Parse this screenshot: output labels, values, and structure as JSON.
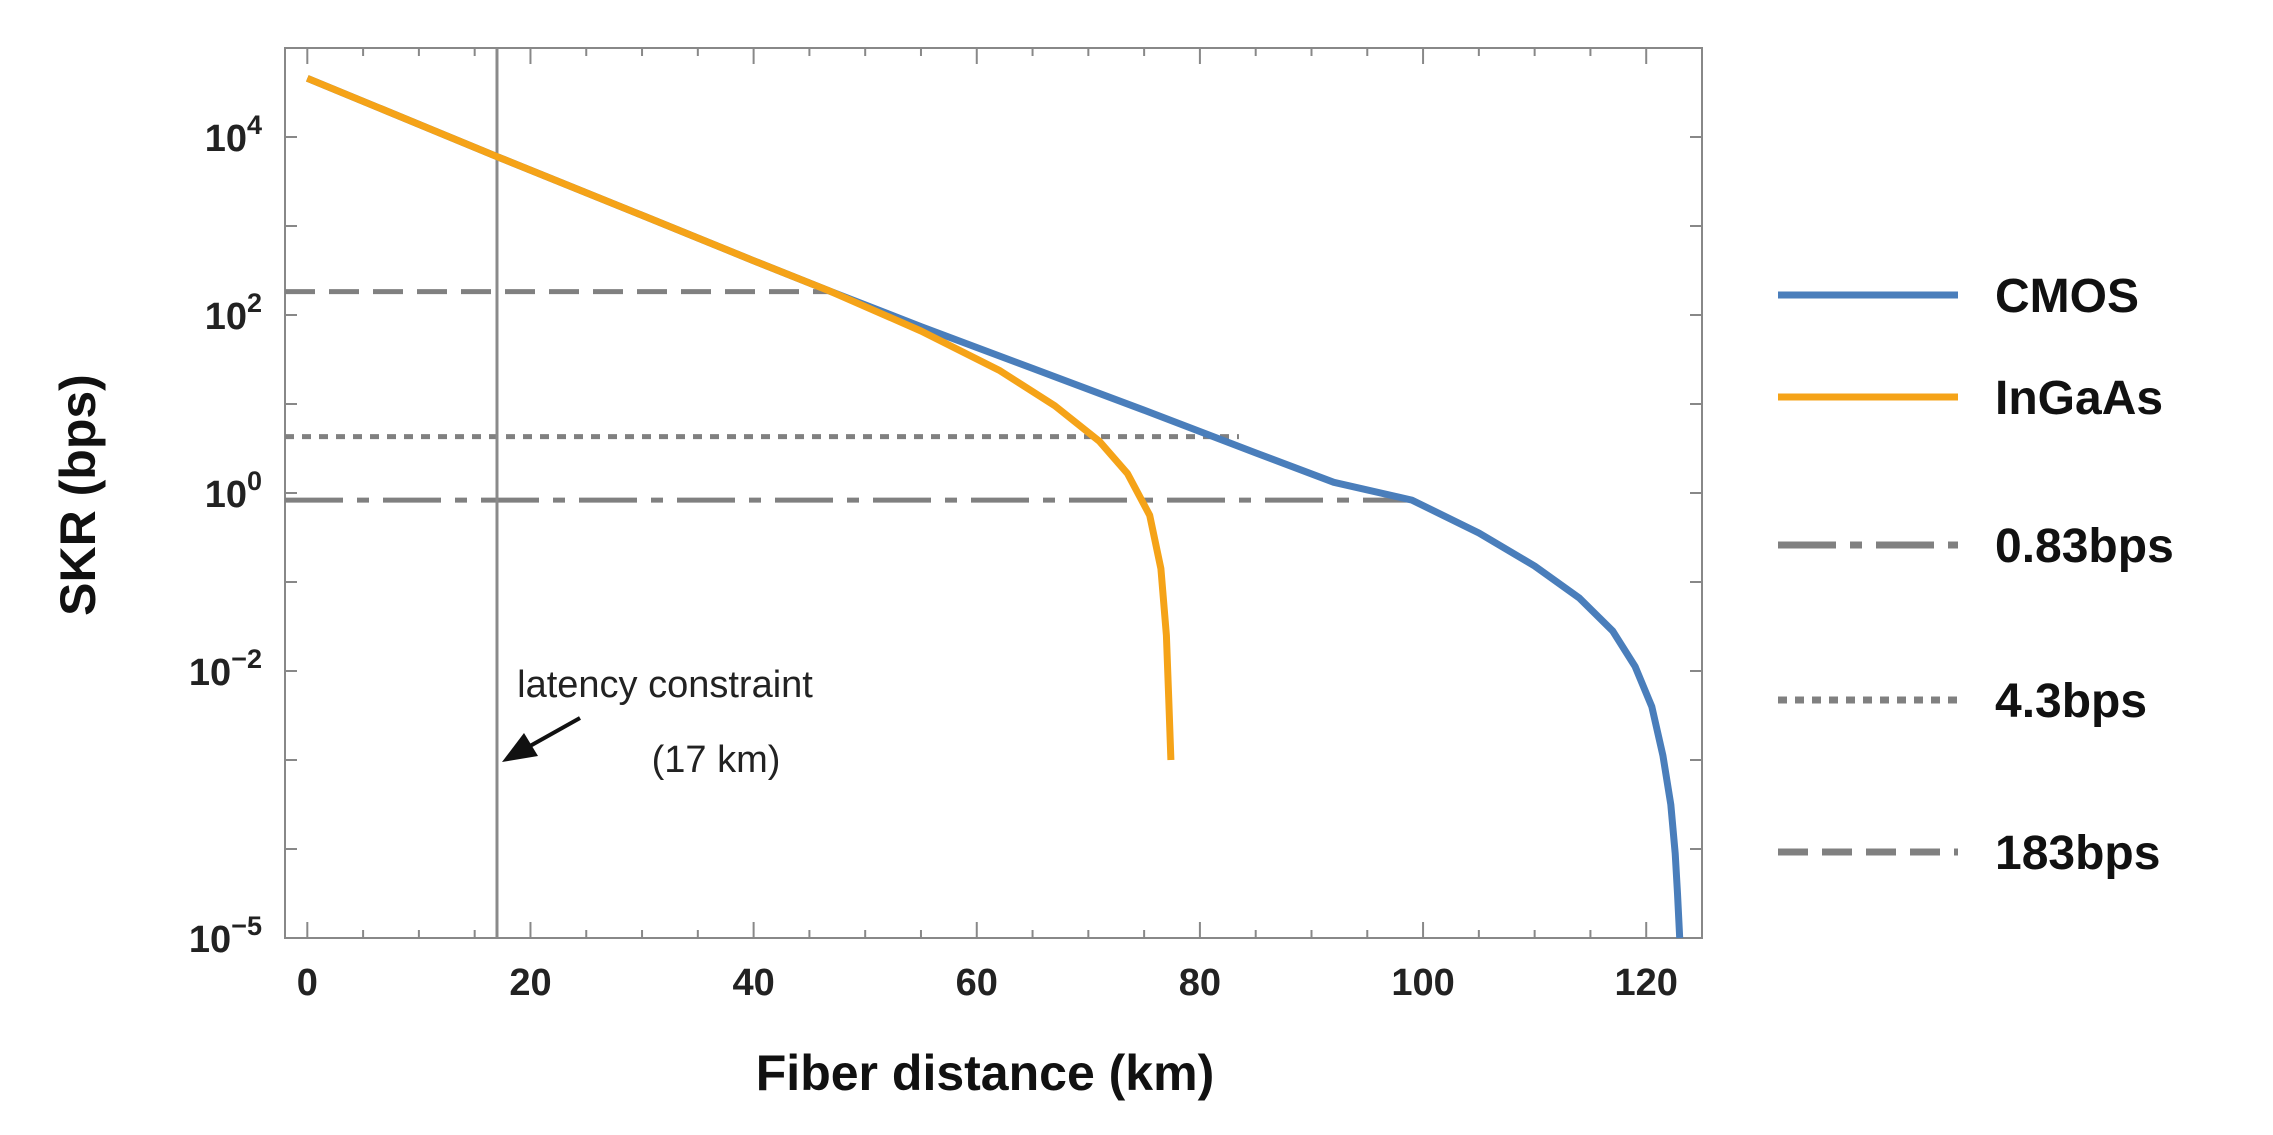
{
  "chart_data": {
    "type": "line",
    "xlabel": "Fiber distance (km)",
    "ylabel": "SKR (bps)",
    "xlim": [
      -2,
      125
    ],
    "ylim_log10": [
      -5,
      5
    ],
    "y_scale": "log",
    "x_ticks": [
      0,
      20,
      40,
      60,
      80,
      100,
      120
    ],
    "x_minor_step": 5,
    "y_ticks": [
      {
        "exp": 4,
        "base": "10",
        "sup": "4"
      },
      {
        "exp": 2,
        "base": "10",
        "sup": "2"
      },
      {
        "exp": 0,
        "base": "10",
        "sup": "0"
      },
      {
        "exp": -2,
        "base": "10",
        "sup": "−2"
      },
      {
        "exp": -5,
        "base": "10",
        "sup": "−5"
      }
    ],
    "series": [
      {
        "name": "CMOS",
        "color": "#4a7ebb",
        "x": [
          0,
          17,
          30,
          40,
          47,
          55,
          65,
          75,
          85,
          92,
          99,
          105,
          110,
          114,
          117,
          119,
          120.5,
          121.5,
          122.2,
          122.6,
          122.8,
          123.0
        ],
        "y_log10": [
          4.66,
          3.78,
          3.12,
          2.61,
          2.26,
          1.87,
          1.4,
          0.93,
          0.45,
          0.12,
          -0.08,
          -0.45,
          -0.82,
          -1.18,
          -1.55,
          -1.95,
          -2.4,
          -2.95,
          -3.5,
          -4.05,
          -4.5,
          -5.0
        ]
      },
      {
        "name": "InGaAs",
        "color": "#f5a318",
        "x": [
          0,
          17,
          30,
          40,
          47,
          55,
          62,
          67,
          71,
          73.5,
          75.5,
          76.5,
          77.0,
          77.2,
          77.4
        ],
        "y_log10": [
          4.66,
          3.78,
          3.12,
          2.61,
          2.26,
          1.82,
          1.38,
          0.98,
          0.58,
          0.22,
          -0.25,
          -0.85,
          -1.6,
          -2.3,
          -3.0
        ]
      }
    ],
    "reference_lines": [
      {
        "name": "0.83bps",
        "style": "dashdot",
        "value": 0.83,
        "y_log10": -0.08,
        "x_end": 99
      },
      {
        "name": "4.3bps",
        "style": "dotted",
        "value": 4.3,
        "y_log10": 0.633,
        "x_end": 83.5
      },
      {
        "name": "183bps",
        "style": "dashed",
        "value": 183,
        "y_log10": 2.262,
        "x_end": 47
      }
    ],
    "vertical_line": {
      "x": 17
    },
    "annotation": {
      "line1": "latency constraint",
      "line2": "(17 km)"
    },
    "legend": {
      "position": "right",
      "entries": [
        {
          "label": "CMOS",
          "style": "solid",
          "color": "#4a7ebb"
        },
        {
          "label": "InGaAs",
          "style": "solid",
          "color": "#f5a318"
        },
        {
          "label": "0.83bps",
          "style": "dashdot",
          "color": "#808080"
        },
        {
          "label": "4.3bps",
          "style": "dotted",
          "color": "#808080"
        },
        {
          "label": "183bps",
          "style": "dashed",
          "color": "#808080"
        }
      ]
    }
  },
  "colors": {
    "frame": "#888888",
    "reference": "#808080",
    "vertical": "#8a8a8a",
    "text": "#222222"
  }
}
